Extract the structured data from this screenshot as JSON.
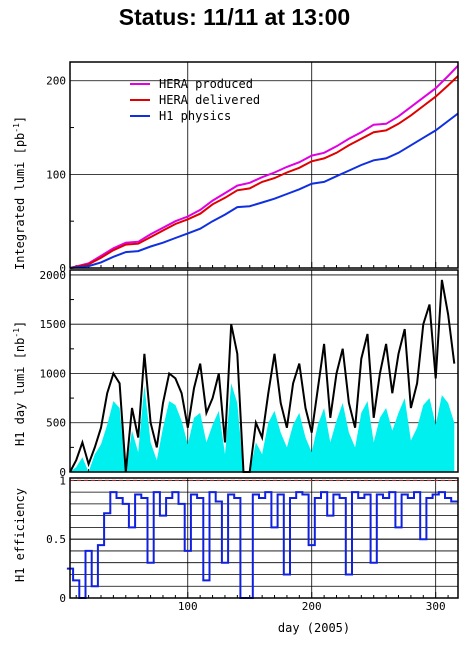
{
  "title": "Status: 11/11 at 13:00",
  "x_axis": {
    "label": "day (2005)",
    "range": [
      5,
      318
    ],
    "ticks": [
      100,
      200,
      300
    ],
    "minor_step": 10
  },
  "colors": {
    "hera_produced": "#e000e0",
    "hera_delivered": "#e00000",
    "h1_physics": "#1030e0",
    "day_lumi_fill": "#00f0f0",
    "day_lumi_line": "#000000",
    "efficiency": "#1020e0",
    "reference_dash": "#cc2222"
  },
  "chart_data": [
    {
      "type": "line",
      "name": "integrated-luminosity",
      "ylabel": "Integrated lumi [pb-1]",
      "ylabel_main": "Integrated lumi [pb",
      "ylabel_sup": "-1",
      "ylabel_end": "]",
      "ylim": [
        0,
        220
      ],
      "yticks": [
        0,
        100,
        200
      ],
      "grid": true,
      "legend_placement": "top-left",
      "x": [
        5,
        20,
        30,
        40,
        50,
        60,
        70,
        80,
        90,
        100,
        110,
        120,
        130,
        140,
        150,
        160,
        170,
        180,
        190,
        200,
        210,
        220,
        230,
        240,
        250,
        260,
        270,
        280,
        290,
        300,
        310,
        318
      ],
      "series": [
        {
          "name": "HERA produced",
          "color_key": "hera_produced",
          "values": [
            0,
            5,
            13,
            21,
            27,
            28,
            36,
            43,
            50,
            55,
            62,
            72,
            80,
            88,
            91,
            97,
            102,
            108,
            113,
            120,
            123,
            130,
            138,
            145,
            153,
            154,
            162,
            172,
            182,
            192,
            205,
            216
          ]
        },
        {
          "name": "HERA delivered",
          "color_key": "hera_delivered",
          "values": [
            0,
            4,
            11,
            19,
            25,
            26,
            33,
            40,
            47,
            52,
            58,
            68,
            75,
            83,
            85,
            92,
            96,
            102,
            107,
            114,
            117,
            123,
            131,
            138,
            145,
            147,
            154,
            163,
            173,
            183,
            195,
            205
          ]
        },
        {
          "name": "H1 physics",
          "color_key": "h1_physics",
          "values": [
            0,
            2,
            6,
            12,
            17,
            18,
            23,
            27,
            32,
            37,
            42,
            50,
            57,
            65,
            66,
            70,
            74,
            79,
            84,
            90,
            92,
            98,
            104,
            110,
            115,
            117,
            123,
            131,
            139,
            147,
            157,
            165
          ]
        }
      ]
    },
    {
      "type": "bar",
      "name": "h1-day-luminosity",
      "ylabel": "H1 day lumi [nb-1]",
      "ylabel_main": "H1 day lumi [nb",
      "ylabel_sup": "-1",
      "ylabel_end": "]",
      "ylim": [
        0,
        2050
      ],
      "yticks": [
        0,
        500,
        1000,
        1500,
        2000
      ],
      "grid": true,
      "days": [
        5,
        10,
        15,
        20,
        25,
        30,
        35,
        40,
        45,
        50,
        55,
        60,
        65,
        70,
        75,
        80,
        85,
        90,
        95,
        100,
        105,
        110,
        115,
        120,
        125,
        130,
        135,
        140,
        145,
        150,
        155,
        160,
        165,
        170,
        175,
        180,
        185,
        190,
        195,
        200,
        205,
        210,
        215,
        220,
        225,
        230,
        235,
        240,
        245,
        250,
        255,
        260,
        265,
        270,
        275,
        280,
        285,
        290,
        295,
        300,
        305,
        310,
        315
      ],
      "h1_values": [
        0,
        50,
        150,
        0,
        180,
        280,
        480,
        720,
        650,
        0,
        420,
        200,
        880,
        300,
        120,
        450,
        720,
        680,
        520,
        280,
        550,
        600,
        300,
        480,
        620,
        180,
        900,
        700,
        0,
        0,
        300,
        180,
        500,
        620,
        400,
        250,
        480,
        600,
        350,
        200,
        480,
        650,
        300,
        520,
        700,
        400,
        250,
        600,
        720,
        300,
        550,
        650,
        420,
        600,
        750,
        320,
        450,
        680,
        750,
        480,
        780,
        700,
        500
      ],
      "delivered_values": [
        0,
        120,
        300,
        80,
        250,
        450,
        800,
        1000,
        900,
        0,
        650,
        350,
        1200,
        500,
        250,
        700,
        1000,
        950,
        800,
        450,
        850,
        1100,
        600,
        750,
        1000,
        300,
        1500,
        1200,
        0,
        0,
        500,
        350,
        800,
        1200,
        700,
        450,
        900,
        1100,
        650,
        400,
        850,
        1300,
        550,
        1000,
        1250,
        700,
        450,
        1150,
        1400,
        550,
        1000,
        1300,
        800,
        1200,
        1450,
        650,
        900,
        1500,
        1700,
        950,
        1950,
        1600,
        1100
      ]
    },
    {
      "type": "line",
      "name": "h1-efficiency",
      "ylabel": "H1 efficiency",
      "ylim": [
        0,
        1.02
      ],
      "yticks": [
        0,
        0.5,
        1
      ],
      "ytick_labels": [
        "0",
        "0.5",
        "1"
      ],
      "grid": true,
      "reference_line": 1,
      "x": [
        5,
        10,
        15,
        20,
        25,
        30,
        35,
        40,
        45,
        50,
        55,
        60,
        65,
        70,
        75,
        80,
        85,
        90,
        95,
        100,
        105,
        110,
        115,
        120,
        125,
        130,
        135,
        140,
        145,
        150,
        155,
        160,
        165,
        170,
        175,
        180,
        185,
        190,
        195,
        200,
        205,
        210,
        215,
        220,
        225,
        230,
        235,
        240,
        245,
        250,
        255,
        260,
        265,
        270,
        275,
        280,
        285,
        290,
        295,
        300,
        305,
        310,
        315
      ],
      "values": [
        0.25,
        0.15,
        0,
        0.4,
        0.1,
        0.45,
        0.72,
        0.9,
        0.85,
        0.8,
        0.6,
        0.88,
        0.85,
        0.3,
        0.9,
        0.7,
        0.85,
        0.9,
        0.8,
        0.4,
        0.88,
        0.85,
        0.15,
        0.9,
        0.82,
        0.3,
        0.88,
        0.85,
        0,
        0,
        0.88,
        0.85,
        0.9,
        0.6,
        0.88,
        0.2,
        0.85,
        0.9,
        0.88,
        0.45,
        0.85,
        0.9,
        0.7,
        0.88,
        0.85,
        0.2,
        0.9,
        0.85,
        0.88,
        0.3,
        0.88,
        0.85,
        0.9,
        0.6,
        0.88,
        0.85,
        0.9,
        0.5,
        0.85,
        0.88,
        0.9,
        0.85,
        0.82
      ]
    }
  ]
}
